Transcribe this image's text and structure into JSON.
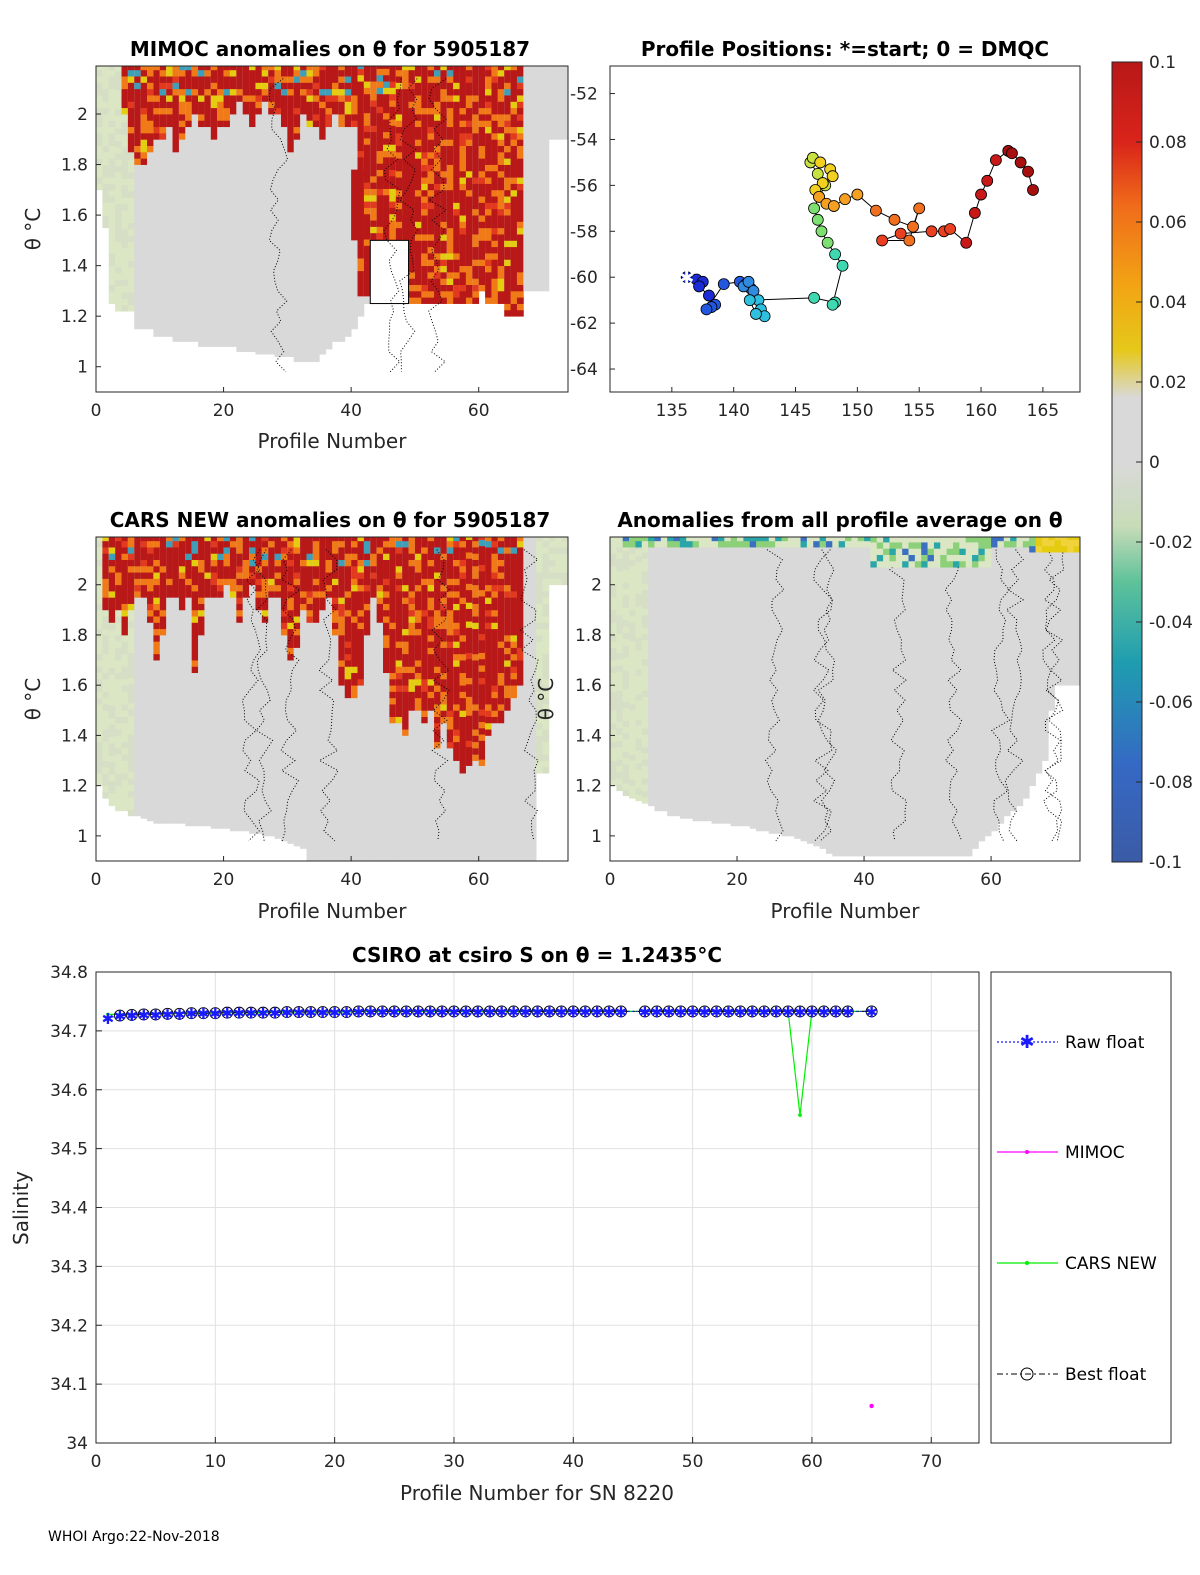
{
  "footer": "WHOI Argo:22-Nov-2018",
  "colors": {
    "red": "#b81818",
    "orange": "#f07a18",
    "yellow": "#e4cc10",
    "grey": "#d9d9d9",
    "lightgreen": "#dbe6c4",
    "blue_raw": "#1a1aff",
    "mimoc": "#ff00ff",
    "cars": "#00ee00"
  },
  "chart_data": [
    {
      "id": "mimoc",
      "type": "heatmap",
      "title": "MIMOC anomalies on θ  for 5905187",
      "xlabel": "Profile Number",
      "ylabel": "θ °C",
      "xlim": [
        0,
        74
      ],
      "ylim": [
        0.9,
        2.19
      ],
      "xticks": [
        "0",
        "20",
        "40",
        "60"
      ],
      "yticks": [
        "1",
        "1.2",
        "1.4",
        "1.6",
        "1.8",
        "2"
      ],
      "mask_bottom": [
        1.7,
        1.55,
        1.25,
        1.22,
        1.22,
        1.22,
        1.15,
        1.15,
        1.15,
        1.12,
        1.12,
        1.12,
        1.1,
        1.1,
        1.1,
        1.1,
        1.08,
        1.08,
        1.08,
        1.08,
        1.08,
        1.08,
        1.06,
        1.06,
        1.06,
        1.05,
        1.05,
        1.05,
        1.04,
        1.04,
        1.04,
        1.02,
        1.02,
        1.02,
        1.02,
        1.05,
        1.07,
        1.1,
        1.1,
        1.12,
        1.15,
        1.2,
        1.25,
        1.3,
        1.3,
        1.3,
        1.3,
        1.3,
        1.3,
        1.3,
        1.3,
        1.3,
        1.3,
        1.3,
        1.3,
        1.3,
        1.3,
        1.3,
        1.3,
        1.3,
        1.3,
        1.3,
        1.3,
        1.3,
        1.3,
        1.3,
        1.3,
        1.3,
        1.3,
        1.3,
        1.3,
        1.9,
        1.9,
        1.9
      ],
      "red_bottom": [
        2.19,
        2.19,
        2.19,
        2.19,
        2.0,
        1.85,
        1.8,
        1.8,
        1.85,
        1.9,
        1.9,
        1.95,
        1.85,
        1.9,
        1.95,
        2.0,
        1.95,
        1.95,
        1.9,
        1.95,
        1.95,
        2.0,
        2.05,
        2.0,
        1.95,
        2.0,
        2.05,
        2.0,
        2.0,
        1.95,
        1.85,
        1.9,
        2.0,
        1.95,
        1.95,
        1.9,
        1.95,
        2.0,
        1.95,
        1.95,
        1.95,
        1.28,
        1.28,
        1.28,
        1.28,
        1.28,
        1.28,
        1.25,
        1.25,
        1.25,
        1.25,
        1.25,
        1.25,
        1.25,
        1.25,
        1.25,
        1.25,
        1.25,
        1.25,
        1.25,
        1.3,
        1.25,
        1.25,
        1.25,
        1.2,
        1.2,
        1.2,
        2.19,
        2.19,
        2.19,
        2.19,
        2.19,
        2.19,
        2.19
      ],
      "holes": [
        {
          "x0": 43,
          "x1": 49,
          "y0": 1.25,
          "y1": 1.5
        }
      ],
      "extra_red": [
        {
          "x0": 40,
          "x1": 42,
          "y0": 1.5,
          "y1": 1.78
        },
        {
          "x0": 48,
          "x1": 50,
          "y0": 1.45,
          "y1": 2.0
        }
      ]
    },
    {
      "id": "positions",
      "type": "scatter",
      "title": "Profile Positions: *=start; 0 = DMQC",
      "xlim": [
        130,
        168
      ],
      "ylim": [
        -65,
        -50.8
      ],
      "xticks": [
        "135",
        "140",
        "145",
        "150",
        "155",
        "160",
        "165"
      ],
      "yticks": [
        "-52",
        "-54",
        "-56",
        "-58",
        "-60",
        "-62",
        "-64"
      ],
      "lon": [
        136.2,
        137.0,
        137.5,
        137.2,
        138.0,
        138.5,
        138.2,
        137.8,
        139.2,
        140.5,
        141.0,
        141.4,
        140.8,
        141.2,
        141.6,
        142.0,
        142.2,
        142.5,
        141.8,
        141.3,
        146.5,
        148.2,
        148.0,
        148.8,
        148.2,
        147.6,
        147.1,
        146.8,
        146.5,
        146.9,
        147.4,
        146.8,
        146.2,
        146.4,
        147.0,
        147.8,
        148.0,
        147.2,
        146.6,
        146.9,
        147.5,
        148.1,
        149.0,
        150.0,
        151.5,
        153.0,
        154.5,
        155.0,
        154.2,
        152.0,
        153.5,
        156.0,
        157.0,
        157.5,
        158.8,
        159.5,
        160.0,
        160.5,
        161.2,
        162.2,
        162.5,
        163.2,
        163.8,
        164.2
      ],
      "lat": [
        -60.0,
        -60.1,
        -60.2,
        -60.4,
        -60.8,
        -61.2,
        -61.3,
        -61.4,
        -60.3,
        -60.2,
        -60.3,
        -60.5,
        -60.4,
        -60.2,
        -60.6,
        -61.0,
        -61.4,
        -61.7,
        -61.6,
        -61.0,
        -60.9,
        -61.1,
        -61.2,
        -59.5,
        -59.0,
        -58.5,
        -58.0,
        -57.5,
        -57.0,
        -56.5,
        -56.0,
        -55.5,
        -55.0,
        -54.8,
        -55.0,
        -55.3,
        -55.6,
        -55.9,
        -56.2,
        -56.5,
        -56.8,
        -56.9,
        -56.6,
        -56.4,
        -57.1,
        -57.5,
        -57.8,
        -57.0,
        -58.4,
        -58.4,
        -58.1,
        -58.0,
        -58.0,
        -57.9,
        -58.5,
        -57.2,
        -56.4,
        -55.8,
        -54.9,
        -54.5,
        -54.6,
        -55.0,
        -55.4,
        -56.2
      ],
      "start": [
        136.2,
        -60.0
      ]
    },
    {
      "id": "cars",
      "type": "heatmap",
      "title": "CARS NEW anomalies on θ for 5905187",
      "xlabel": "Profile Number",
      "ylabel": "θ °C",
      "xlim": [
        0,
        74
      ],
      "ylim": [
        0.9,
        2.19
      ],
      "xticks": [
        "0",
        "20",
        "40",
        "60"
      ],
      "yticks": [
        "1",
        "1.2",
        "1.4",
        "1.6",
        "1.8",
        "2"
      ],
      "mask_bottom": [
        1.2,
        1.15,
        1.12,
        1.1,
        1.1,
        1.08,
        1.08,
        1.07,
        1.06,
        1.05,
        1.05,
        1.05,
        1.05,
        1.05,
        1.04,
        1.04,
        1.04,
        1.04,
        1.03,
        1.03,
        1.03,
        1.02,
        1.02,
        1.02,
        1.01,
        1.01,
        1.0,
        1.0,
        0.99,
        0.98,
        0.97,
        0.96,
        0.95,
        0.9,
        0.9,
        0.9,
        0.9,
        0.9,
        0.9,
        0.9,
        0.9,
        0.9,
        0.9,
        0.9,
        0.9,
        0.9,
        0.9,
        0.9,
        0.9,
        0.9,
        0.9,
        0.9,
        0.9,
        0.9,
        0.9,
        0.9,
        0.9,
        0.9,
        0.9,
        0.9,
        0.9,
        0.9,
        0.9,
        0.9,
        0.9,
        0.9,
        0.9,
        0.9,
        0.9,
        1.25,
        1.25,
        2.0,
        2.0,
        2.0
      ],
      "red_bottom": [
        2.19,
        1.9,
        1.85,
        1.9,
        1.8,
        1.9,
        1.95,
        1.95,
        1.85,
        1.7,
        1.8,
        1.95,
        1.95,
        1.9,
        1.95,
        1.65,
        1.8,
        1.95,
        1.95,
        1.95,
        2.0,
        1.95,
        1.85,
        1.95,
        2.0,
        1.9,
        1.85,
        1.95,
        1.95,
        1.8,
        1.7,
        1.75,
        1.9,
        1.85,
        1.85,
        1.9,
        1.95,
        1.8,
        1.6,
        1.55,
        1.55,
        1.6,
        1.8,
        1.95,
        1.85,
        1.65,
        1.45,
        1.45,
        1.4,
        1.5,
        1.5,
        1.45,
        1.5,
        1.35,
        1.45,
        1.35,
        1.3,
        1.25,
        1.28,
        1.3,
        1.28,
        1.4,
        1.45,
        1.45,
        1.5,
        1.55,
        1.6,
        2.19,
        2.19,
        2.19,
        2.19,
        2.19,
        2.19,
        2.19
      ],
      "holes": [],
      "extra_red": []
    },
    {
      "id": "avg",
      "type": "heatmap",
      "title": "Anomalies from all profile average on θ",
      "xlabel": "Profile Number",
      "ylabel": "θ °C",
      "xlim": [
        0,
        74
      ],
      "ylim": [
        0.9,
        2.19
      ],
      "xticks": [
        "0",
        "20",
        "40",
        "60"
      ],
      "yticks": [
        "1",
        "1.2",
        "1.4",
        "1.6",
        "1.8",
        "2"
      ],
      "mask_bottom": [
        1.2,
        1.18,
        1.16,
        1.15,
        1.14,
        1.13,
        1.12,
        1.1,
        1.1,
        1.08,
        1.08,
        1.07,
        1.07,
        1.06,
        1.06,
        1.06,
        1.05,
        1.05,
        1.05,
        1.04,
        1.04,
        1.04,
        1.03,
        1.02,
        1.02,
        1.01,
        1.01,
        1.0,
        1.0,
        0.99,
        0.98,
        0.97,
        0.96,
        0.95,
        0.93,
        0.92,
        0.92,
        0.92,
        0.92,
        0.92,
        0.92,
        0.92,
        0.92,
        0.92,
        0.92,
        0.92,
        0.92,
        0.92,
        0.92,
        0.92,
        0.92,
        0.92,
        0.92,
        0.92,
        0.92,
        0.92,
        0.92,
        0.95,
        0.98,
        1.0,
        1.02,
        1.05,
        1.08,
        1.1,
        1.12,
        1.15,
        1.2,
        1.25,
        1.3,
        1.5,
        1.6,
        1.6,
        1.6,
        1.6
      ],
      "red_bottom": [],
      "holes": [],
      "extra_red": []
    },
    {
      "id": "colorbar",
      "type": "heatmap",
      "ticks": [
        "0.1",
        "0.08",
        "0.06",
        "0.04",
        "0.02",
        "0",
        "-0.02",
        "-0.04",
        "-0.06",
        "-0.08",
        "-0.1"
      ]
    },
    {
      "id": "salinity",
      "type": "line",
      "title": "CSIRO at csiro S on θ = 1.2435°C",
      "xlabel": "Profile Number for SN 8220",
      "ylabel": "Salinity",
      "xlim": [
        0,
        74
      ],
      "ylim": [
        34.0,
        34.8
      ],
      "xticks": [
        "0",
        "10",
        "20",
        "30",
        "40",
        "50",
        "60",
        "70"
      ],
      "yticks": [
        "34",
        "34.1",
        "34.2",
        "34.3",
        "34.4",
        "34.5",
        "34.6",
        "34.7",
        "34.8"
      ],
      "series": [
        {
          "name": "Raw float",
          "x": [
            1,
            2,
            3,
            4,
            5,
            6,
            7,
            8,
            9,
            10,
            11,
            12,
            13,
            14,
            15,
            16,
            17,
            18,
            19,
            20,
            21,
            22,
            23,
            24,
            25,
            26,
            27,
            28,
            29,
            30,
            31,
            32,
            33,
            34,
            35,
            36,
            37,
            38,
            39,
            40,
            41,
            42,
            43,
            44,
            46,
            47,
            48,
            49,
            50,
            51,
            52,
            53,
            54,
            55,
            56,
            57,
            58,
            59,
            60,
            61,
            62,
            63,
            65
          ],
          "y": [
            34.722,
            34.726,
            34.727,
            34.728,
            34.728,
            34.729,
            34.729,
            34.73,
            34.73,
            34.73,
            34.731,
            34.731,
            34.731,
            34.731,
            34.731,
            34.732,
            34.732,
            34.732,
            34.732,
            34.732,
            34.732,
            34.733,
            34.733,
            34.733,
            34.733,
            34.733,
            34.733,
            34.733,
            34.733,
            34.733,
            34.733,
            34.733,
            34.733,
            34.733,
            34.733,
            34.733,
            34.733,
            34.733,
            34.733,
            34.733,
            34.733,
            34.733,
            34.733,
            34.733,
            34.733,
            34.733,
            34.733,
            34.733,
            34.733,
            34.733,
            34.733,
            34.733,
            34.733,
            34.733,
            34.733,
            34.733,
            34.733,
            34.733,
            34.733,
            34.733,
            34.733,
            34.733,
            34.733
          ]
        },
        {
          "name": "MIMOC",
          "x": [
            65
          ],
          "y": [
            34.063
          ]
        },
        {
          "name": "CARS NEW",
          "x": [
            1,
            2,
            3,
            4,
            5,
            6,
            7,
            8,
            9,
            10,
            11,
            12,
            13,
            14,
            15,
            16,
            17,
            18,
            19,
            20,
            21,
            22,
            23,
            24,
            25,
            26,
            27,
            28,
            29,
            30,
            31,
            32,
            33,
            34,
            35,
            36,
            37,
            38,
            39,
            40,
            41,
            42,
            43,
            44,
            46,
            47,
            48,
            49,
            50,
            51,
            52,
            53,
            54,
            55,
            56,
            57,
            58,
            59,
            60,
            61,
            62,
            63,
            65
          ],
          "y": [
            34.728,
            34.728,
            34.728,
            34.729,
            34.729,
            34.729,
            34.73,
            34.73,
            34.73,
            34.73,
            34.731,
            34.731,
            34.731,
            34.731,
            34.732,
            34.732,
            34.732,
            34.732,
            34.732,
            34.732,
            34.732,
            34.733,
            34.733,
            34.733,
            34.733,
            34.733,
            34.733,
            34.733,
            34.733,
            34.733,
            34.733,
            34.733,
            34.733,
            34.733,
            34.733,
            34.733,
            34.733,
            34.733,
            34.733,
            34.733,
            34.733,
            34.733,
            34.733,
            34.733,
            34.733,
            34.733,
            34.733,
            34.733,
            34.733,
            34.733,
            34.733,
            34.733,
            34.733,
            34.733,
            34.733,
            34.733,
            34.733,
            34.557,
            34.733,
            34.733,
            34.733,
            34.733,
            34.733
          ]
        },
        {
          "name": "Best float",
          "x": [
            2,
            3,
            4,
            5,
            6,
            7,
            8,
            9,
            10,
            11,
            12,
            13,
            14,
            15,
            16,
            17,
            18,
            19,
            20,
            21,
            22,
            23,
            24,
            25,
            26,
            27,
            28,
            29,
            30,
            31,
            32,
            33,
            34,
            35,
            36,
            37,
            38,
            39,
            40,
            41,
            42,
            43,
            44,
            46,
            47,
            48,
            49,
            50,
            51,
            52,
            53,
            54,
            55,
            56,
            57,
            58,
            59,
            60,
            61,
            62,
            63,
            65
          ],
          "y": [
            34.726,
            34.727,
            34.728,
            34.728,
            34.729,
            34.729,
            34.73,
            34.73,
            34.73,
            34.731,
            34.731,
            34.731,
            34.731,
            34.731,
            34.732,
            34.732,
            34.732,
            34.732,
            34.732,
            34.732,
            34.733,
            34.733,
            34.733,
            34.733,
            34.733,
            34.733,
            34.733,
            34.733,
            34.733,
            34.733,
            34.733,
            34.733,
            34.733,
            34.733,
            34.733,
            34.733,
            34.733,
            34.733,
            34.733,
            34.733,
            34.733,
            34.733,
            34.733,
            34.733,
            34.733,
            34.733,
            34.733,
            34.733,
            34.733,
            34.733,
            34.733,
            34.733,
            34.733,
            34.733,
            34.733,
            34.733,
            34.733,
            34.733,
            34.733,
            34.733,
            34.733,
            34.733
          ]
        }
      ]
    }
  ]
}
